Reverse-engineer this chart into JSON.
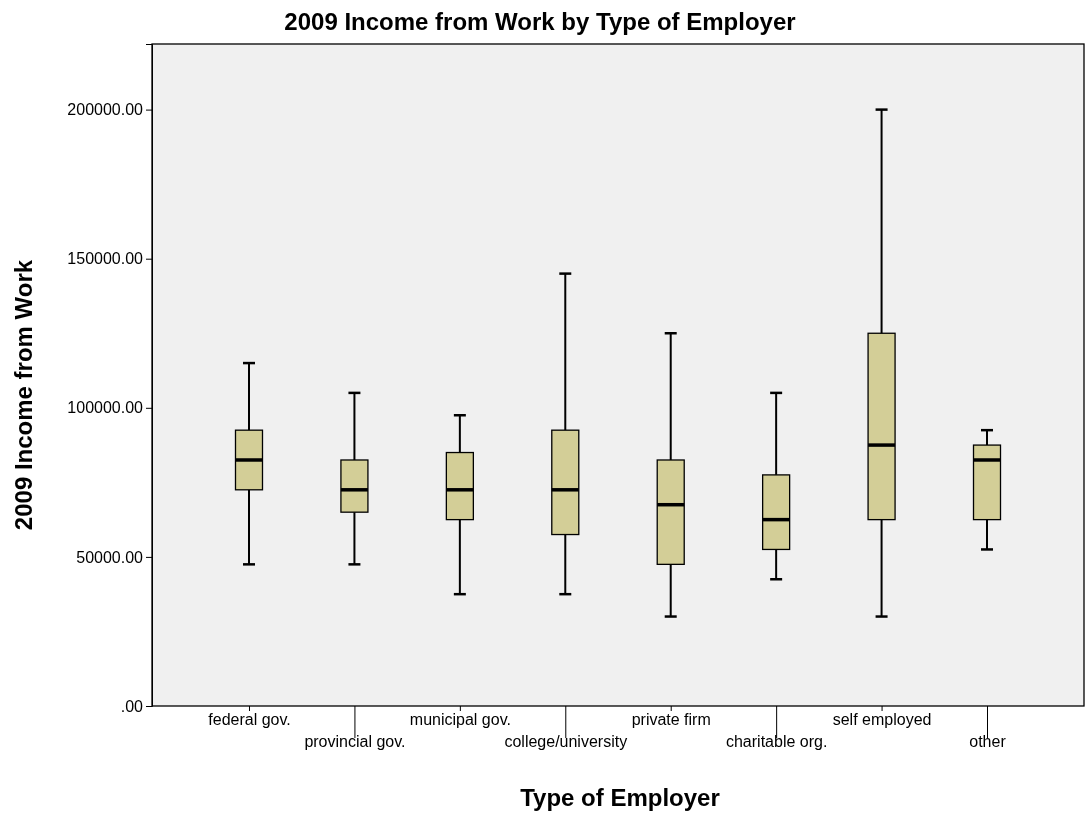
{
  "chart_data": {
    "type": "box",
    "title": "2009 Income from Work by Type of Employer",
    "xlabel": "Type of Employer",
    "ylabel": "2009 Income from Work",
    "categories": [
      "federal gov.",
      "provincial gov.",
      "municipal gov.",
      "college/university",
      "private firm",
      "charitable org.",
      "self employed",
      "other"
    ],
    "color": "#d3ce97",
    "boxes": [
      {
        "low": 47500,
        "q1": 72500,
        "median": 82500,
        "q3": 92500,
        "high": 115000
      },
      {
        "low": 47500,
        "q1": 65000,
        "median": 72500,
        "q3": 82500,
        "high": 105000
      },
      {
        "low": 37500,
        "q1": 62500,
        "median": 72500,
        "q3": 85000,
        "high": 97500
      },
      {
        "low": 37500,
        "q1": 57500,
        "median": 72500,
        "q3": 92500,
        "high": 145000
      },
      {
        "low": 30000,
        "q1": 47500,
        "median": 67500,
        "q3": 82500,
        "high": 125000
      },
      {
        "low": 42500,
        "q1": 52500,
        "median": 62500,
        "q3": 77500,
        "high": 105000
      },
      {
        "low": 30000,
        "q1": 62500,
        "median": 87500,
        "q3": 125000,
        "high": 200000
      },
      {
        "low": 52500,
        "q1": 62500,
        "median": 82500,
        "q3": 87500,
        "high": 92500
      }
    ],
    "ylim": [
      0,
      222000
    ],
    "yticks": [
      {
        "value": 0,
        "label": ".00"
      },
      {
        "value": 50000,
        "label": "50000.00"
      },
      {
        "value": 100000,
        "label": "100000.00"
      },
      {
        "value": 150000,
        "label": "150000.00"
      },
      {
        "value": 200000,
        "label": "200000.00"
      }
    ]
  }
}
